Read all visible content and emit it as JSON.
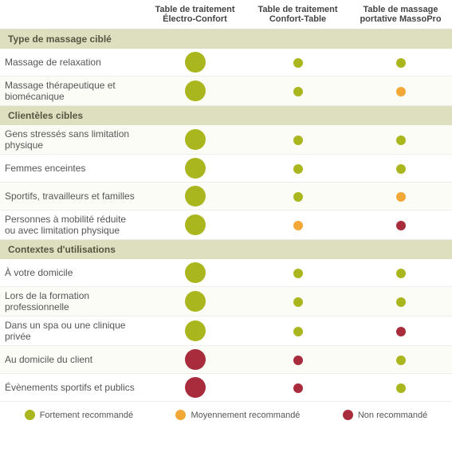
{
  "colors": {
    "strong": "#aab61e",
    "medium": "#f2a836",
    "not": "#a82c3c",
    "section_bg": "#dedfbe",
    "text": "#555555"
  },
  "dot_sizes": {
    "large": 26,
    "small": 12
  },
  "columns": [
    "Table de traitement\nÉlectro-Confort",
    "Table de traitement Confort-Table",
    "Table de massage portative MassoPro"
  ],
  "sections": [
    {
      "title": "Type de massage ciblé",
      "rows": [
        {
          "label": "Massage de relaxation",
          "cells": [
            {
              "c": "strong",
              "s": "large"
            },
            {
              "c": "strong",
              "s": "small"
            },
            {
              "c": "strong",
              "s": "small"
            }
          ]
        },
        {
          "label": "Massage thérapeutique et biomécanique",
          "cells": [
            {
              "c": "strong",
              "s": "large"
            },
            {
              "c": "strong",
              "s": "small"
            },
            {
              "c": "medium",
              "s": "small"
            }
          ]
        }
      ]
    },
    {
      "title": "Clientèles cibles",
      "rows": [
        {
          "label": "Gens stressés sans limitation physique",
          "cells": [
            {
              "c": "strong",
              "s": "large"
            },
            {
              "c": "strong",
              "s": "small"
            },
            {
              "c": "strong",
              "s": "small"
            }
          ]
        },
        {
          "label": "Femmes enceintes",
          "cells": [
            {
              "c": "strong",
              "s": "large"
            },
            {
              "c": "strong",
              "s": "small"
            },
            {
              "c": "strong",
              "s": "small"
            }
          ]
        },
        {
          "label": "Sportifs, travailleurs et familles",
          "cells": [
            {
              "c": "strong",
              "s": "large"
            },
            {
              "c": "strong",
              "s": "small"
            },
            {
              "c": "medium",
              "s": "small"
            }
          ]
        },
        {
          "label": "Personnes à mobilité réduite ou avec limitation physique",
          "cells": [
            {
              "c": "strong",
              "s": "large"
            },
            {
              "c": "medium",
              "s": "small"
            },
            {
              "c": "not",
              "s": "small"
            }
          ]
        }
      ]
    },
    {
      "title": "Contextes d'utilisations",
      "rows": [
        {
          "label": "À votre domicile",
          "cells": [
            {
              "c": "strong",
              "s": "large"
            },
            {
              "c": "strong",
              "s": "small"
            },
            {
              "c": "strong",
              "s": "small"
            }
          ]
        },
        {
          "label": "Lors de la formation professionnelle",
          "cells": [
            {
              "c": "strong",
              "s": "large"
            },
            {
              "c": "strong",
              "s": "small"
            },
            {
              "c": "strong",
              "s": "small"
            }
          ]
        },
        {
          "label": "Dans un spa ou une clinique privée",
          "cells": [
            {
              "c": "strong",
              "s": "large"
            },
            {
              "c": "strong",
              "s": "small"
            },
            {
              "c": "not",
              "s": "small"
            }
          ]
        },
        {
          "label": "Au domicile du client",
          "cells": [
            {
              "c": "not",
              "s": "large"
            },
            {
              "c": "not",
              "s": "small"
            },
            {
              "c": "strong",
              "s": "small"
            }
          ]
        },
        {
          "label": "Évènements sportifs et publics",
          "cells": [
            {
              "c": "not",
              "s": "large"
            },
            {
              "c": "not",
              "s": "small"
            },
            {
              "c": "strong",
              "s": "small"
            }
          ]
        }
      ]
    }
  ],
  "legend": [
    {
      "color": "strong",
      "label": "Fortement recommandé"
    },
    {
      "color": "medium",
      "label": "Moyennement recommandé"
    },
    {
      "color": "not",
      "label": "Non recommandé"
    }
  ]
}
